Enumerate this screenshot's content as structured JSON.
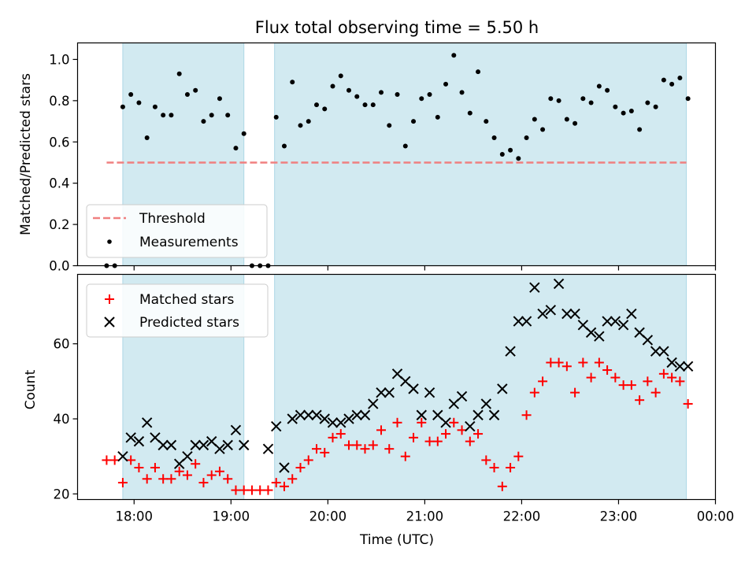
{
  "title": "Flux total observing time = 5.50 h",
  "colors": {
    "span": "#add8e6",
    "threshold": "#f08080",
    "measurement": "#000000",
    "matched": "#ff0000",
    "predicted": "#000000"
  },
  "chart_data": [
    {
      "type": "scatter",
      "ylabel": "Matched/Predicted stars",
      "ylim": [
        0.0,
        1.08
      ],
      "xlim": [
        "17:25",
        "00:00"
      ],
      "yticks": [
        "0.0",
        "0.2",
        "0.4",
        "0.6",
        "0.8",
        "1.0"
      ],
      "ytick_values": [
        0.0,
        0.2,
        0.4,
        0.6,
        0.8,
        1.0
      ],
      "observing_spans": [
        [
          "17:53",
          "19:08"
        ],
        [
          "19:27",
          "23:42"
        ]
      ],
      "threshold": {
        "name": "Threshold",
        "value": 0.5,
        "x_range": [
          "17:43",
          "23:42"
        ]
      },
      "legend": [
        "Threshold",
        "Measurements"
      ],
      "legend_position": "lower-left",
      "series": [
        {
          "name": "Measurements",
          "x": [
            "17:43",
            "17:48",
            "17:53",
            "17:58",
            "18:03",
            "18:08",
            "18:13",
            "18:18",
            "18:23",
            "18:28",
            "18:33",
            "18:38",
            "18:43",
            "18:48",
            "18:53",
            "18:58",
            "19:03",
            "19:08",
            "19:13",
            "19:18",
            "19:23",
            "19:28",
            "19:33",
            "19:38",
            "19:43",
            "19:48",
            "19:53",
            "19:58",
            "20:03",
            "20:08",
            "20:13",
            "20:18",
            "20:23",
            "20:28",
            "20:33",
            "20:38",
            "20:43",
            "20:48",
            "20:53",
            "20:58",
            "21:03",
            "21:08",
            "21:13",
            "21:18",
            "21:23",
            "21:28",
            "21:33",
            "21:38",
            "21:43",
            "21:48",
            "21:53",
            "21:58",
            "22:03",
            "22:08",
            "22:13",
            "22:18",
            "22:23",
            "22:28",
            "22:33",
            "22:38",
            "22:43",
            "22:48",
            "22:53",
            "22:58",
            "23:03",
            "23:08",
            "23:13",
            "23:18",
            "23:23",
            "23:28",
            "23:33",
            "23:38",
            "23:43"
          ],
          "y": [
            0.0,
            0.0,
            0.77,
            0.83,
            0.79,
            0.62,
            0.77,
            0.73,
            0.73,
            0.93,
            0.83,
            0.85,
            0.7,
            0.73,
            0.81,
            0.73,
            0.57,
            0.64,
            0.0,
            0.0,
            0.0,
            0.72,
            0.58,
            0.89,
            0.68,
            0.7,
            0.78,
            0.76,
            0.87,
            0.92,
            0.85,
            0.82,
            0.78,
            0.78,
            0.84,
            0.68,
            0.83,
            0.58,
            0.7,
            0.81,
            0.83,
            0.72,
            0.88,
            1.02,
            0.84,
            0.74,
            0.94,
            0.7,
            0.62,
            0.54,
            0.56,
            0.52,
            0.62,
            0.71,
            0.66,
            0.81,
            0.8,
            0.71,
            0.69,
            0.81,
            0.79,
            0.87,
            0.85,
            0.77,
            0.74,
            0.75,
            0.66,
            0.79,
            0.77,
            0.9,
            0.88,
            0.91,
            0.81
          ]
        }
      ]
    },
    {
      "type": "scatter",
      "xlabel": "Time (UTC)",
      "ylabel": "Count",
      "ylim": [
        18.5,
        78.5
      ],
      "xlim": [
        "17:25",
        "00:00"
      ],
      "yticks": [
        "20",
        "40",
        "60"
      ],
      "ytick_values": [
        20,
        40,
        60
      ],
      "xticks": [
        "18:00",
        "19:00",
        "20:00",
        "21:00",
        "22:00",
        "23:00",
        "00:00"
      ],
      "observing_spans": [
        [
          "17:53",
          "19:08"
        ],
        [
          "19:27",
          "23:42"
        ]
      ],
      "legend": [
        "Matched stars",
        "Predicted stars"
      ],
      "legend_position": "upper-left",
      "series": [
        {
          "name": "Matched stars",
          "x": [
            "17:43",
            "17:48",
            "17:53",
            "17:58",
            "18:03",
            "18:08",
            "18:13",
            "18:18",
            "18:23",
            "18:28",
            "18:33",
            "18:38",
            "18:43",
            "18:48",
            "18:53",
            "18:58",
            "19:03",
            "19:08",
            "19:13",
            "19:18",
            "19:23",
            "19:28",
            "19:33",
            "19:38",
            "19:43",
            "19:48",
            "19:53",
            "19:58",
            "20:03",
            "20:08",
            "20:13",
            "20:18",
            "20:23",
            "20:28",
            "20:33",
            "20:38",
            "20:43",
            "20:48",
            "20:53",
            "20:58",
            "21:03",
            "21:08",
            "21:13",
            "21:18",
            "21:23",
            "21:28",
            "21:33",
            "21:38",
            "21:43",
            "21:48",
            "21:53",
            "21:58",
            "22:03",
            "22:08",
            "22:13",
            "22:18",
            "22:23",
            "22:28",
            "22:33",
            "22:38",
            "22:43",
            "22:48",
            "22:53",
            "22:58",
            "23:03",
            "23:08",
            "23:13",
            "23:18",
            "23:23",
            "23:28",
            "23:33",
            "23:38",
            "23:43"
          ],
          "y": [
            29,
            29,
            23,
            29,
            27,
            24,
            27,
            24,
            24,
            26,
            25,
            28,
            23,
            25,
            26,
            24,
            21,
            21,
            21,
            21,
            21,
            23,
            22,
            24,
            27,
            29,
            32,
            31,
            35,
            36,
            33,
            33,
            32,
            33,
            37,
            32,
            39,
            30,
            35,
            39,
            34,
            34,
            36,
            39,
            37,
            34,
            36,
            29,
            27,
            22,
            27,
            30,
            41,
            47,
            50,
            55,
            55,
            54,
            47,
            55,
            51,
            55,
            53,
            51,
            49,
            49,
            45,
            50,
            47,
            52,
            51,
            50,
            44
          ]
        },
        {
          "name": "Predicted stars",
          "x": [
            "17:53",
            "17:58",
            "18:03",
            "18:08",
            "18:13",
            "18:18",
            "18:23",
            "18:28",
            "18:33",
            "18:38",
            "18:43",
            "18:48",
            "18:53",
            "18:58",
            "19:03",
            "19:08",
            "19:23",
            "19:28",
            "19:33",
            "19:38",
            "19:43",
            "19:48",
            "19:53",
            "19:58",
            "20:03",
            "20:08",
            "20:13",
            "20:18",
            "20:23",
            "20:28",
            "20:33",
            "20:38",
            "20:43",
            "20:48",
            "20:53",
            "20:58",
            "21:03",
            "21:08",
            "21:13",
            "21:18",
            "21:23",
            "21:28",
            "21:33",
            "21:38",
            "21:43",
            "21:48",
            "21:53",
            "21:58",
            "22:03",
            "22:08",
            "22:13",
            "22:18",
            "22:23",
            "22:28",
            "22:33",
            "22:38",
            "22:43",
            "22:48",
            "22:53",
            "22:58",
            "23:03",
            "23:08",
            "23:13",
            "23:18",
            "23:23",
            "23:28",
            "23:33",
            "23:38",
            "23:43"
          ],
          "y": [
            30,
            35,
            34,
            39,
            35,
            33,
            33,
            28,
            30,
            33,
            33,
            34,
            32,
            33,
            37,
            33,
            32,
            38,
            27,
            40,
            41,
            41,
            41,
            40,
            39,
            39,
            40,
            41,
            41,
            44,
            47,
            47,
            52,
            50,
            48,
            41,
            47,
            41,
            39,
            44,
            46,
            38,
            41,
            44,
            41,
            48,
            58,
            66,
            66,
            75,
            68,
            69,
            76,
            68,
            68,
            65,
            63,
            62,
            66,
            66,
            65,
            68,
            63,
            61,
            58,
            58,
            55,
            54,
            54
          ]
        }
      ]
    }
  ]
}
